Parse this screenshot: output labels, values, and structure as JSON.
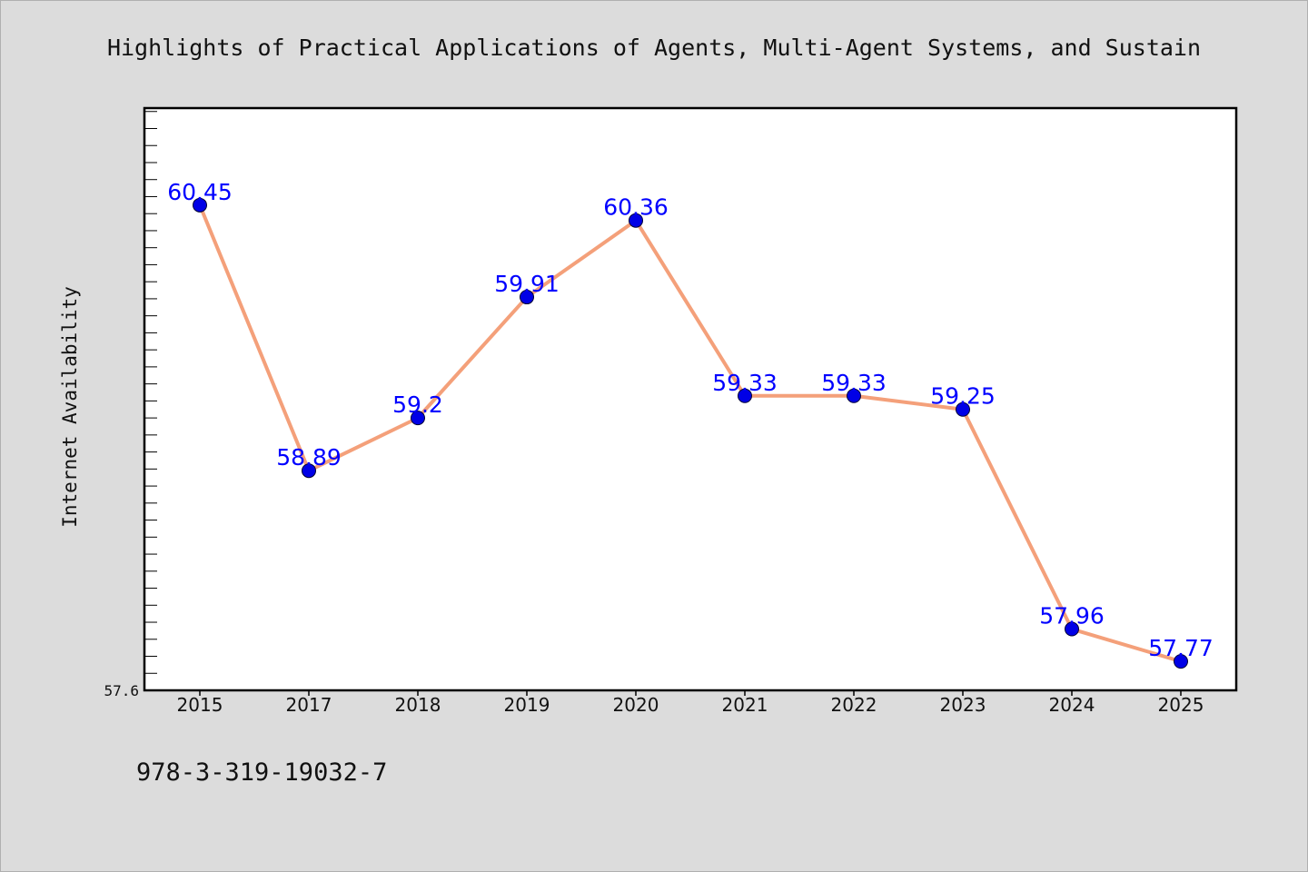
{
  "chart_data": {
    "type": "line",
    "title": "Highlights of Practical Applications of Agents, Multi-Agent Systems, and Sustain",
    "xlabel": "",
    "ylabel": "Internet Availability",
    "categories": [
      "2015",
      "2017",
      "2018",
      "2019",
      "2020",
      "2021",
      "2022",
      "2023",
      "2024",
      "2025"
    ],
    "series": [
      {
        "values": [
          60.45,
          58.89,
          59.2,
          59.91,
          60.36,
          59.33,
          59.33,
          59.25,
          57.96,
          57.77
        ]
      }
    ],
    "data_labels": [
      "60.45",
      "58.89",
      "59.2",
      "59.91",
      "60.36",
      "59.33",
      "59.33",
      "59.25",
      "57.96",
      "57.77"
    ],
    "y_tick_labels": [
      "57.6"
    ],
    "ylim": [
      57.6,
      61.02
    ],
    "grid": false,
    "legend": "none",
    "colors": {
      "line": "#f4a07a",
      "marker": "#0000e6",
      "data_label": "#0000ff",
      "background": "#dcdcdc",
      "plot_background": "#ffffff"
    }
  },
  "footer": {
    "identifier": "978-3-319-19032-7"
  }
}
